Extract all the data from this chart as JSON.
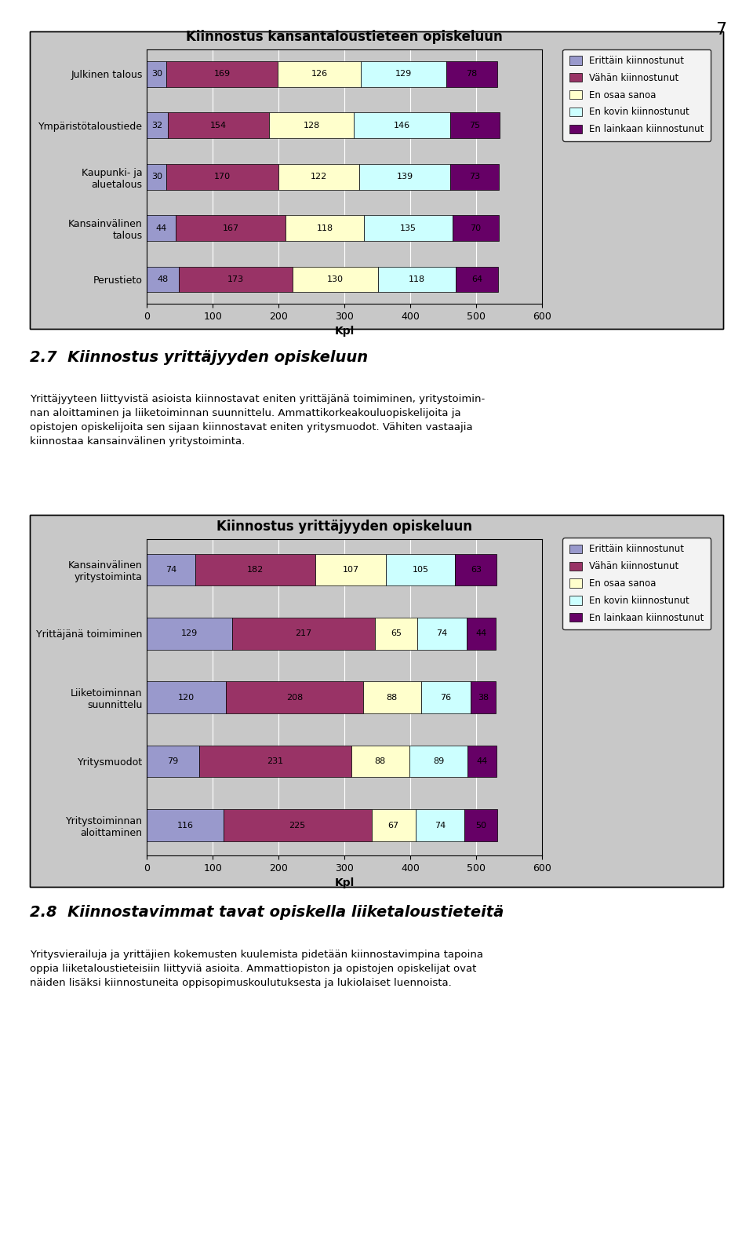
{
  "page_number": "7",
  "chart1": {
    "title": "Kiinnostus kansantaloustieteen opiskeluun",
    "categories": [
      "Julkinen talous",
      "Ympäristötaloustiede",
      "Kaupunki- ja\naluetalous",
      "Kansainvälinen\ntalous",
      "Perustieto"
    ],
    "series": {
      "Erittäin kiinnostunut": [
        30,
        32,
        30,
        44,
        48
      ],
      "Vähän kiinnostunut": [
        169,
        154,
        170,
        167,
        173
      ],
      "En osaa sanoa": [
        126,
        128,
        122,
        118,
        130
      ],
      "En kovin kiinnostunut": [
        129,
        146,
        139,
        135,
        118
      ],
      "En lainkaan kiinnostunut": [
        78,
        75,
        73,
        70,
        64
      ]
    },
    "xlim": [
      0,
      600
    ],
    "xticks": [
      0,
      100,
      200,
      300,
      400,
      500,
      600
    ],
    "xlabel": "Kpl"
  },
  "chart2": {
    "title": "Kiinnostus yrittäjyyden opiskeluun",
    "categories": [
      "Kansainvälinen\nyritystoiminta",
      "Yrittäjänä toimiminen",
      "Liiketoiminnan\nsuunnittelu",
      "Yritysmuodot",
      "Yritystoiminnan\naloittaminen"
    ],
    "series": {
      "Erittäin kiinnostunut": [
        74,
        129,
        120,
        79,
        116
      ],
      "Vähän kiinnostunut": [
        182,
        217,
        208,
        231,
        225
      ],
      "En osaa sanoa": [
        107,
        65,
        88,
        88,
        67
      ],
      "En kovin kiinnostunut": [
        105,
        74,
        76,
        89,
        74
      ],
      "En lainkaan kiinnostunut": [
        63,
        44,
        38,
        44,
        50
      ]
    },
    "xlim": [
      0,
      600
    ],
    "xticks": [
      0,
      100,
      200,
      300,
      400,
      500,
      600
    ],
    "xlabel": "Kpl"
  },
  "colors": {
    "Erittäin kiinnostunut": "#9999CC",
    "Vähän kiinnostunut": "#993366",
    "En osaa sanoa": "#FFFFCC",
    "En kovin kiinnostunut": "#CCFFFF",
    "En lainkaan kiinnostunut": "#660066"
  },
  "legend_labels": [
    "Erittäin kiinnostunut",
    "Vähän kiinnostunut",
    "En osaa sanoa",
    "En kovin kiinnostunut",
    "En lainkaan kiinnostunut"
  ],
  "text_section1": {
    "heading": "2.7  Kiinnostus yrittäjyyden opiskeluun",
    "body": "Yrittäjyyteen liittyvistä asioista kiinnostavat eniten yrittäjänä toimiminen, yritystoimin-\nnan aloittaminen ja liiketoiminnan suunnittelu. Ammattikorkeakouluopiskelijoita ja\nopistojen opiskelijoita sen sijaan kiinnostavat eniten yritysmuodot. Vähiten vastaajia\nkiinnostaa kansainvälinen yritystoiminta."
  },
  "text_section2": {
    "heading": "2.8  Kiinnostavimmat tavat opiskella liiketaloustieteitä",
    "body": "Yritysvierailuja ja yrittäjien kokemusten kuulemista pidetään kiinnostavimpina tapoina\noppia liiketaloustieteisiin liittyviä asioita. Ammattiopiston ja opistojen opiskelijat ovat\nnäiden lisäksi kiinnostuneita oppisopimuskoulutuksesta ja lukiolaiset luennoista."
  },
  "chart_bg": "#C8C8C8",
  "page_bg": "#FFFFFF",
  "bar_height": 0.5,
  "font_size_title": 12,
  "font_size_labels": 9,
  "font_size_bar_text": 8
}
